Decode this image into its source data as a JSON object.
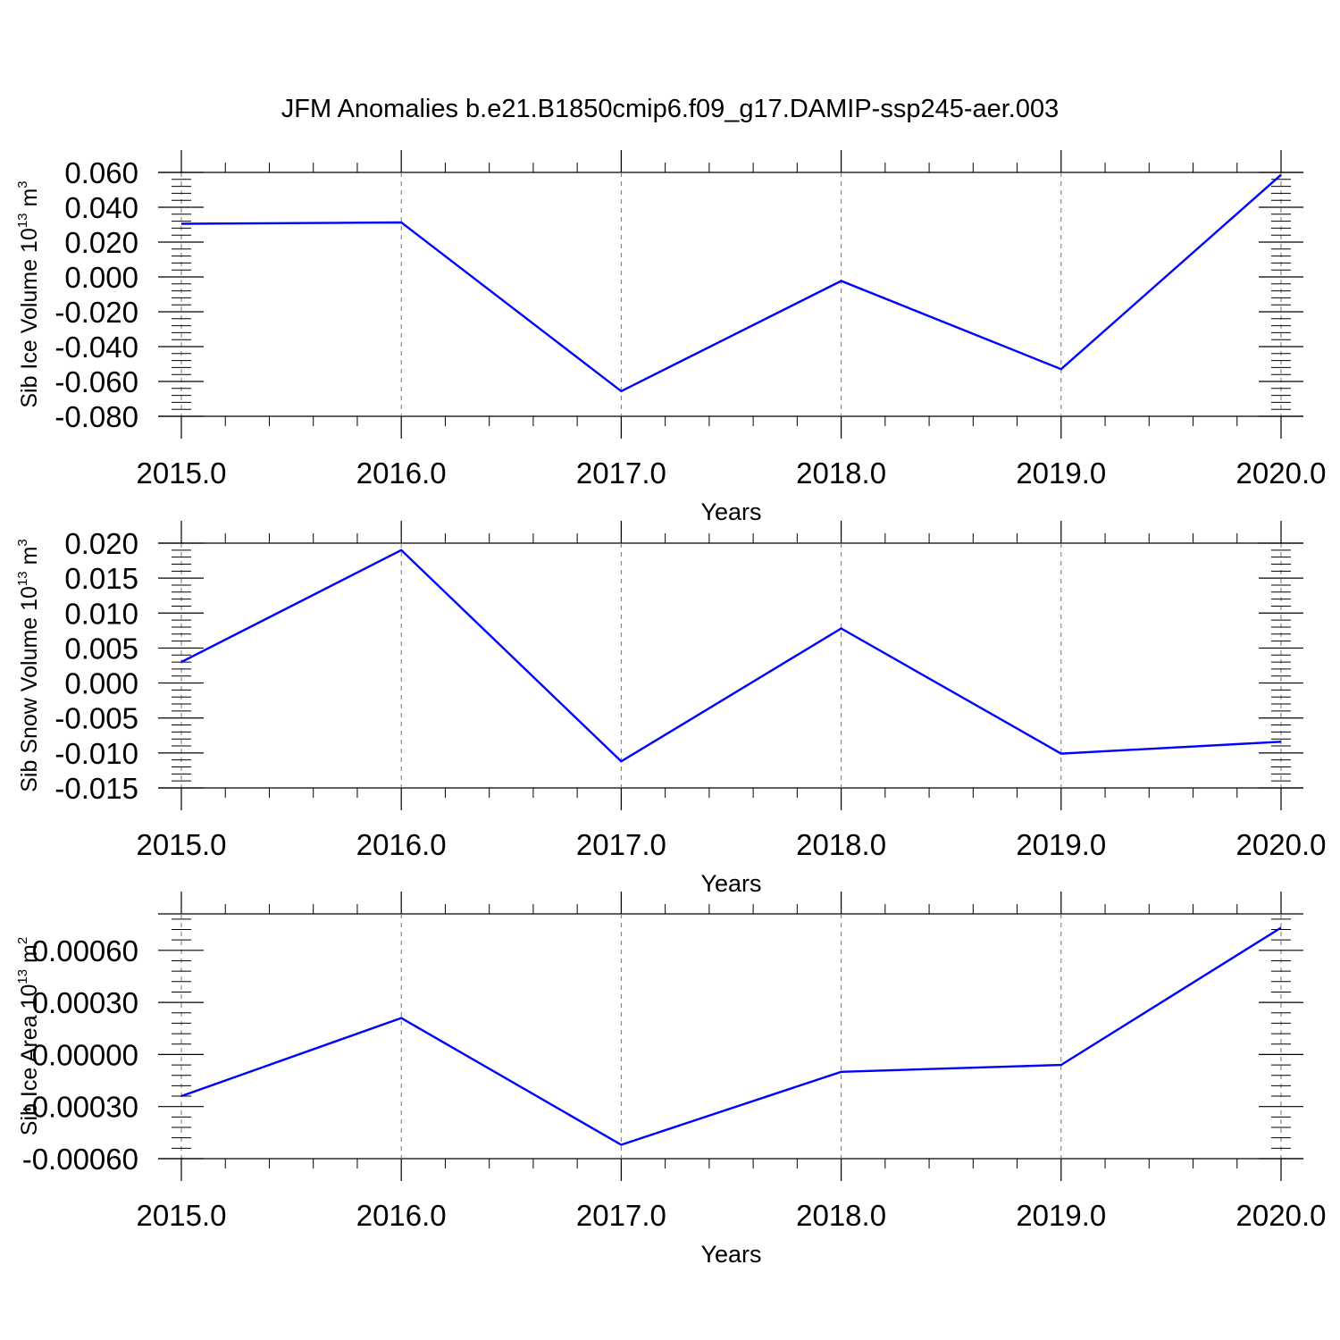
{
  "title": "JFM Anomalies b.e21.B1850cmip6.f09_g17.DAMIP-ssp245-aer.003",
  "colors": {
    "series": "#0000ff",
    "axis": "#000000",
    "grid": "#777777"
  },
  "chart_data": [
    {
      "type": "line",
      "x": [
        2015,
        2016,
        2017,
        2018,
        2019,
        2020
      ],
      "x_tick_labels": [
        "2015.0",
        "2016.0",
        "2017.0",
        "2018.0",
        "2019.0",
        "2020.0"
      ],
      "xlabel": "Years",
      "ylabel": {
        "text": "Sib Ice Volume 10",
        "sup": "13",
        "unit": " m",
        "unit_sup": "3"
      },
      "ylim": [
        -0.08,
        0.06
      ],
      "y_ticks": [
        0.06,
        0.04,
        0.02,
        0.0,
        -0.02,
        -0.04,
        -0.06,
        -0.08
      ],
      "y_tick_labels": [
        "0.060",
        "0.040",
        "0.020",
        "0.000",
        "-0.020",
        "-0.040",
        "-0.060",
        "-0.080"
      ],
      "series": [
        {
          "values": [
            0.0305,
            0.0313,
            -0.0656,
            -0.0023,
            -0.0529,
            0.0586
          ]
        }
      ],
      "grid": "vertical dashed at x ticks"
    },
    {
      "type": "line",
      "x": [
        2015,
        2016,
        2017,
        2018,
        2019,
        2020
      ],
      "x_tick_labels": [
        "2015.0",
        "2016.0",
        "2017.0",
        "2018.0",
        "2019.0",
        "2020.0"
      ],
      "xlabel": "Years",
      "ylabel": {
        "text": "Sib Snow Volume 10",
        "sup": "13",
        "unit": " m",
        "unit_sup": "3"
      },
      "ylim": [
        -0.015,
        0.02
      ],
      "y_ticks": [
        0.02,
        0.015,
        0.01,
        0.005,
        0.0,
        -0.005,
        -0.01,
        -0.015
      ],
      "y_tick_labels": [
        "0.020",
        "0.015",
        "0.010",
        "0.005",
        "0.000",
        "-0.005",
        "-0.010",
        "-0.015"
      ],
      "series": [
        {
          "values": [
            0.003,
            0.019,
            -0.0112,
            0.0078,
            -0.0101,
            -0.0084
          ]
        }
      ],
      "grid": "vertical dashed at x ticks"
    },
    {
      "type": "line",
      "x": [
        2015,
        2016,
        2017,
        2018,
        2019,
        2020
      ],
      "x_tick_labels": [
        "2015.0",
        "2016.0",
        "2017.0",
        "2018.0",
        "2019.0",
        "2020.0"
      ],
      "xlabel": "Years",
      "ylabel": {
        "text": "Sib Ice Area 10",
        "sup": "13",
        "unit": " m",
        "unit_sup": "2"
      },
      "ylim": [
        -0.0006,
        0.00081
      ],
      "y_ticks": [
        0.0006,
        0.0003,
        0.0,
        -0.0003,
        -0.0006
      ],
      "y_tick_labels": [
        "0.00060",
        "0.00030",
        "0.00000",
        "-0.00030",
        "-0.00060"
      ],
      "series": [
        {
          "values": [
            -0.00024,
            0.00021,
            -0.00052,
            -0.0001,
            -6e-05,
            0.00073
          ]
        }
      ],
      "grid": "vertical dashed at x ticks"
    }
  ]
}
